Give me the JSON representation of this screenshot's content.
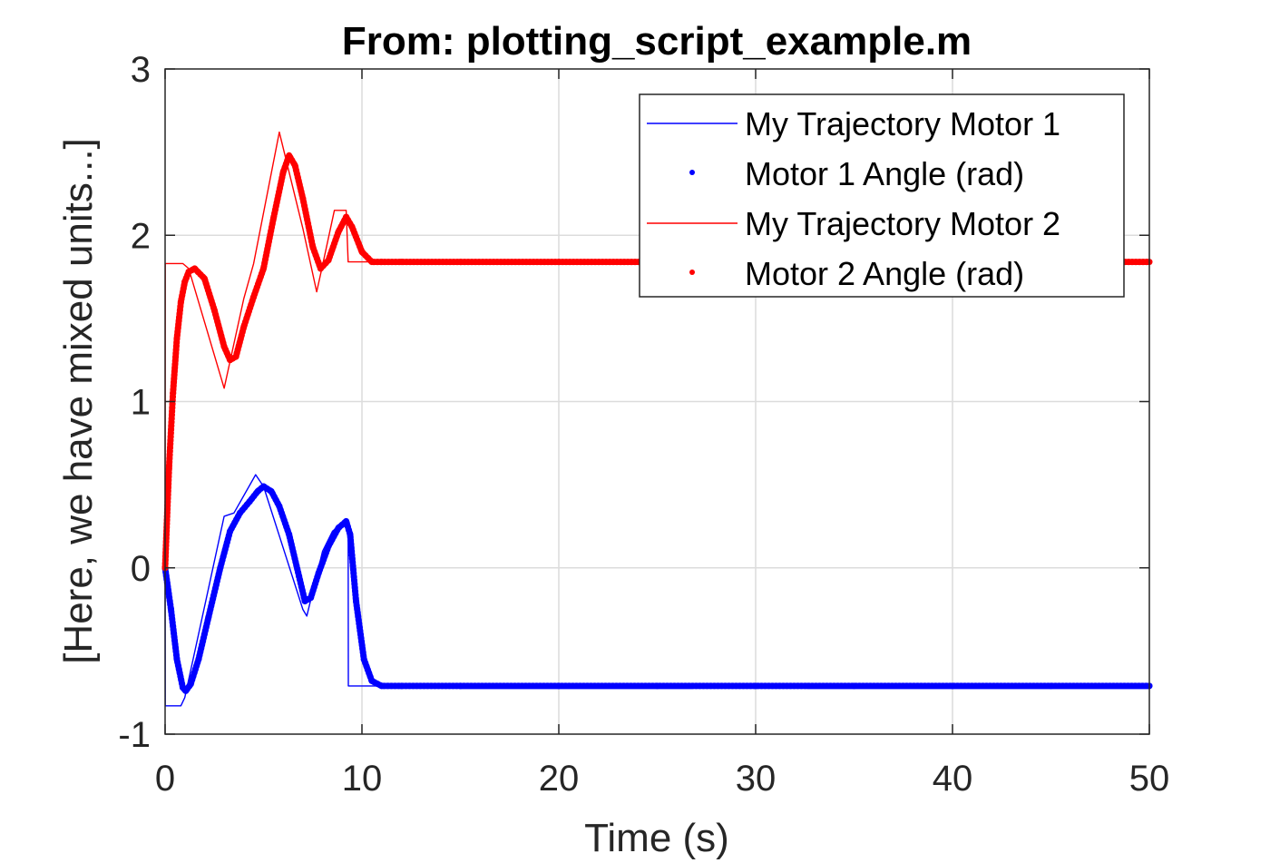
{
  "chart_data": {
    "type": "line",
    "title": "From: plotting_script_example.m",
    "xlabel": "Time (s)",
    "ylabel": "[Here, we have mixed units...]",
    "xlim": [
      0,
      50
    ],
    "ylim": [
      -1,
      3
    ],
    "xticks": [
      0,
      10,
      20,
      30,
      40,
      50
    ],
    "yticks": [
      -1,
      0,
      1,
      2,
      3
    ],
    "grid": true,
    "legend_position": "top-right",
    "series": [
      {
        "name": "My Trajectory Motor 1",
        "style": "thin-line",
        "color": "#0000ff",
        "x": [
          0,
          0.01,
          0.8,
          1.0,
          3.0,
          3.5,
          4.6,
          5.0,
          6.0,
          7.0,
          7.2,
          8.0,
          8.5,
          9.0,
          9.3,
          9.31,
          11.0,
          50
        ],
        "y": [
          0,
          -0.83,
          -0.83,
          -0.78,
          0.31,
          0.33,
          0.56,
          0.49,
          0.12,
          -0.25,
          -0.29,
          0.1,
          0.22,
          0.27,
          0.27,
          -0.71,
          -0.71,
          -0.71
        ]
      },
      {
        "name": "Motor 1 Angle (rad)",
        "style": "dots",
        "color": "#0000ff",
        "x": [
          0,
          0.3,
          0.6,
          0.9,
          1.05,
          1.3,
          1.7,
          2.2,
          2.8,
          3.3,
          3.8,
          4.3,
          4.7,
          5.0,
          5.4,
          5.8,
          6.3,
          6.8,
          7.1,
          7.4,
          7.8,
          8.3,
          8.8,
          9.2,
          9.4,
          9.7,
          10.1,
          10.5,
          11.0,
          12,
          15,
          20,
          25,
          30,
          35,
          40,
          45,
          50
        ],
        "y": [
          0,
          -0.25,
          -0.55,
          -0.72,
          -0.74,
          -0.7,
          -0.55,
          -0.3,
          0.0,
          0.22,
          0.33,
          0.4,
          0.46,
          0.49,
          0.46,
          0.37,
          0.2,
          -0.05,
          -0.2,
          -0.18,
          -0.03,
          0.13,
          0.24,
          0.28,
          0.2,
          -0.2,
          -0.55,
          -0.68,
          -0.71,
          -0.71,
          -0.71,
          -0.71,
          -0.71,
          -0.71,
          -0.71,
          -0.71,
          -0.71,
          -0.71
        ]
      },
      {
        "name": "My Trajectory Motor 2",
        "style": "thin-line",
        "color": "#ff0000",
        "x": [
          0,
          0.01,
          0.9,
          1.2,
          3.0,
          4.0,
          4.5,
          5.8,
          7.0,
          7.7,
          8.0,
          8.6,
          9.2,
          9.3,
          10.0,
          11.0,
          50
        ],
        "y": [
          0,
          1.83,
          1.83,
          1.8,
          1.08,
          1.62,
          1.83,
          2.62,
          2.04,
          1.66,
          1.82,
          2.15,
          2.15,
          1.84,
          1.84,
          1.84,
          1.84
        ]
      },
      {
        "name": "Motor 2 Angle (rad)",
        "style": "dots",
        "color": "#ff0000",
        "x": [
          0,
          0.2,
          0.4,
          0.6,
          0.8,
          1.0,
          1.2,
          1.5,
          2.0,
          2.5,
          3.0,
          3.3,
          3.6,
          4.0,
          4.5,
          5.0,
          5.5,
          6.0,
          6.3,
          6.6,
          7.0,
          7.5,
          7.9,
          8.3,
          8.8,
          9.2,
          9.5,
          10.0,
          10.5,
          11.0,
          12,
          15,
          20,
          25,
          30,
          35,
          40,
          45,
          50
        ],
        "y": [
          0,
          0.6,
          1.05,
          1.38,
          1.6,
          1.72,
          1.78,
          1.8,
          1.74,
          1.55,
          1.33,
          1.25,
          1.27,
          1.45,
          1.63,
          1.8,
          2.1,
          2.38,
          2.48,
          2.42,
          2.22,
          1.93,
          1.8,
          1.85,
          2.02,
          2.11,
          2.05,
          1.9,
          1.84,
          1.84,
          1.84,
          1.84,
          1.84,
          1.84,
          1.84,
          1.84,
          1.84,
          1.84,
          1.84
        ]
      }
    ]
  }
}
